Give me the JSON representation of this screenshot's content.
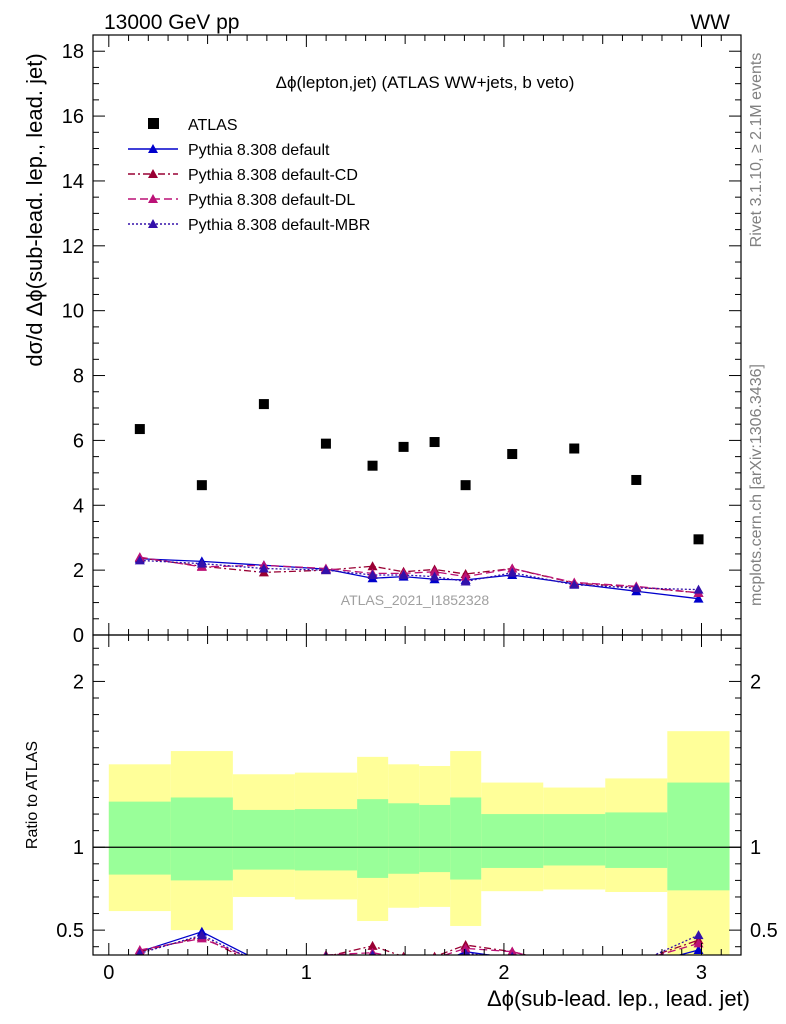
{
  "header": {
    "left": "13000 GeV pp",
    "right": "WW"
  },
  "side_labels": {
    "rivet": "Rivet 3.1.10, ≥ 2.1M events",
    "mcplots": "mcplots.cern.ch [arXiv:1306.3436]"
  },
  "chart_data": [
    {
      "type": "scatter",
      "title": "Δϕ(lepton,jet) (ATLAS WW+jets, b veto)",
      "ylabel": "dσ/d Δϕ(sub-lead. lep., lead. jet)",
      "xlabel": "Δϕ(sub-lead. lep., lead. jet)",
      "watermark": "ATLAS_2021_I1852328",
      "xlim": [
        -0.08,
        3.2
      ],
      "ylim": [
        0,
        18.5
      ],
      "yticks": [
        0,
        2,
        4,
        6,
        8,
        10,
        12,
        14,
        16,
        18
      ],
      "xticks": [
        0,
        1,
        2,
        3
      ],
      "legend_position": "top-left",
      "bins": [
        [
          0.0,
          0.314
        ],
        [
          0.314,
          0.628
        ],
        [
          0.628,
          0.942
        ],
        [
          0.942,
          1.257
        ],
        [
          1.257,
          1.414
        ],
        [
          1.414,
          1.571
        ],
        [
          1.571,
          1.728
        ],
        [
          1.728,
          1.885
        ],
        [
          1.885,
          2.199
        ],
        [
          2.199,
          2.513
        ],
        [
          2.513,
          2.827
        ],
        [
          2.827,
          3.142
        ]
      ],
      "x": [
        0.157,
        0.471,
        0.785,
        1.099,
        1.335,
        1.492,
        1.649,
        1.806,
        2.042,
        2.356,
        2.67,
        2.985
      ],
      "series": [
        {
          "name": "ATLAS",
          "style": "data",
          "color": "#000000",
          "values": [
            6.35,
            4.62,
            7.12,
            5.9,
            5.22,
            5.8,
            5.95,
            4.62,
            5.58,
            5.75,
            4.78,
            2.95
          ]
        },
        {
          "name": "Pythia 8.308 default",
          "style": "solid",
          "color": "#0000cc",
          "values": [
            2.35,
            2.27,
            2.15,
            2.03,
            1.75,
            1.8,
            1.72,
            1.7,
            1.85,
            1.58,
            1.35,
            1.12
          ]
        },
        {
          "name": "Pythia 8.308 default-CD",
          "style": "dashdot",
          "color": "#990033",
          "values": [
            2.38,
            2.12,
            1.93,
            2.0,
            2.12,
            1.95,
            2.02,
            1.88,
            2.05,
            1.6,
            1.48,
            1.3
          ]
        },
        {
          "name": "Pythia 8.308 default-DL",
          "style": "dashed",
          "color": "#bb1177",
          "values": [
            2.4,
            2.1,
            2.15,
            2.05,
            1.9,
            1.9,
            1.95,
            1.8,
            2.05,
            1.62,
            1.5,
            1.3
          ]
        },
        {
          "name": "Pythia 8.308 default-MBR",
          "style": "dotted",
          "color": "#3311aa",
          "values": [
            2.3,
            2.2,
            2.05,
            2.0,
            1.85,
            1.85,
            1.8,
            1.65,
            1.92,
            1.55,
            1.45,
            1.4
          ]
        }
      ]
    },
    {
      "type": "line",
      "ylabel": "Ratio to ATLAS",
      "xlabel": "Δϕ(sub-lead. lep., lead. jet)",
      "xlim": [
        -0.08,
        3.2
      ],
      "ylim": [
        0.35,
        2.28
      ],
      "yticks": [
        0.5,
        1,
        2
      ],
      "xticks": [
        0,
        1,
        2,
        3
      ],
      "bands": {
        "inner": {
          "color": "#99ff99",
          "lo": [
            0.835,
            0.8,
            0.865,
            0.86,
            0.815,
            0.84,
            0.85,
            0.805,
            0.875,
            0.89,
            0.875,
            0.74
          ],
          "hi": [
            1.275,
            1.3,
            1.225,
            1.23,
            1.29,
            1.265,
            1.255,
            1.3,
            1.2,
            1.2,
            1.21,
            1.39
          ]
        },
        "outer": {
          "color": "#ffff99",
          "lo": [
            0.615,
            0.5,
            0.7,
            0.685,
            0.555,
            0.635,
            0.64,
            0.525,
            0.735,
            0.745,
            0.73,
            0.35
          ],
          "hi": [
            1.5,
            1.58,
            1.44,
            1.45,
            1.545,
            1.5,
            1.49,
            1.58,
            1.39,
            1.36,
            1.415,
            1.7
          ]
        }
      },
      "series": [
        {
          "name": "Pythia 8.308 default",
          "values": [
            0.37,
            0.49,
            0.3,
            0.34,
            0.34,
            0.31,
            0.29,
            0.37,
            0.33,
            0.27,
            0.28,
            0.38
          ]
        },
        {
          "name": "Pythia 8.308 default-CD",
          "values": [
            0.37,
            0.46,
            0.27,
            0.34,
            0.405,
            0.34,
            0.34,
            0.41,
            0.37,
            0.28,
            0.31,
            0.44
          ]
        },
        {
          "name": "Pythia 8.308 default-DL",
          "values": [
            0.38,
            0.45,
            0.3,
            0.35,
            0.364,
            0.33,
            0.33,
            0.39,
            0.37,
            0.28,
            0.31,
            0.42
          ]
        },
        {
          "name": "Pythia 8.308 default-MBR",
          "values": [
            0.36,
            0.47,
            0.29,
            0.34,
            0.35,
            0.32,
            0.3,
            0.36,
            0.34,
            0.27,
            0.3,
            0.47
          ]
        }
      ]
    }
  ]
}
